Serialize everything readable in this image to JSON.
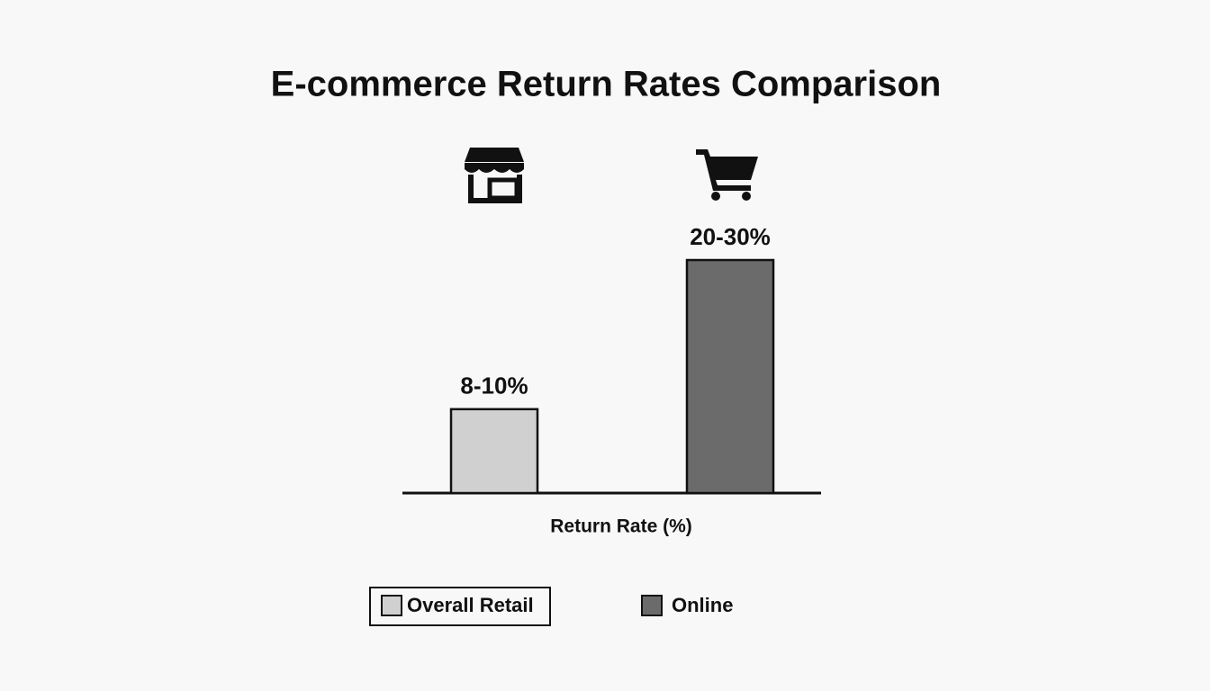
{
  "chart_data": {
    "type": "bar",
    "title": "E-commerce Return Rates Comparison",
    "x_label": "Return Rate (%)",
    "categories": [
      null
    ],
    "series": [
      {
        "name": "Overall Retail",
        "color": "#d0d0d0",
        "values": [
          9
        ],
        "value_labels": [
          "8-10%"
        ]
      },
      {
        "name": "Online",
        "color": "#6b6b6b",
        "values": [
          25
        ],
        "value_labels": [
          "20-30%"
        ]
      }
    ]
  }
}
